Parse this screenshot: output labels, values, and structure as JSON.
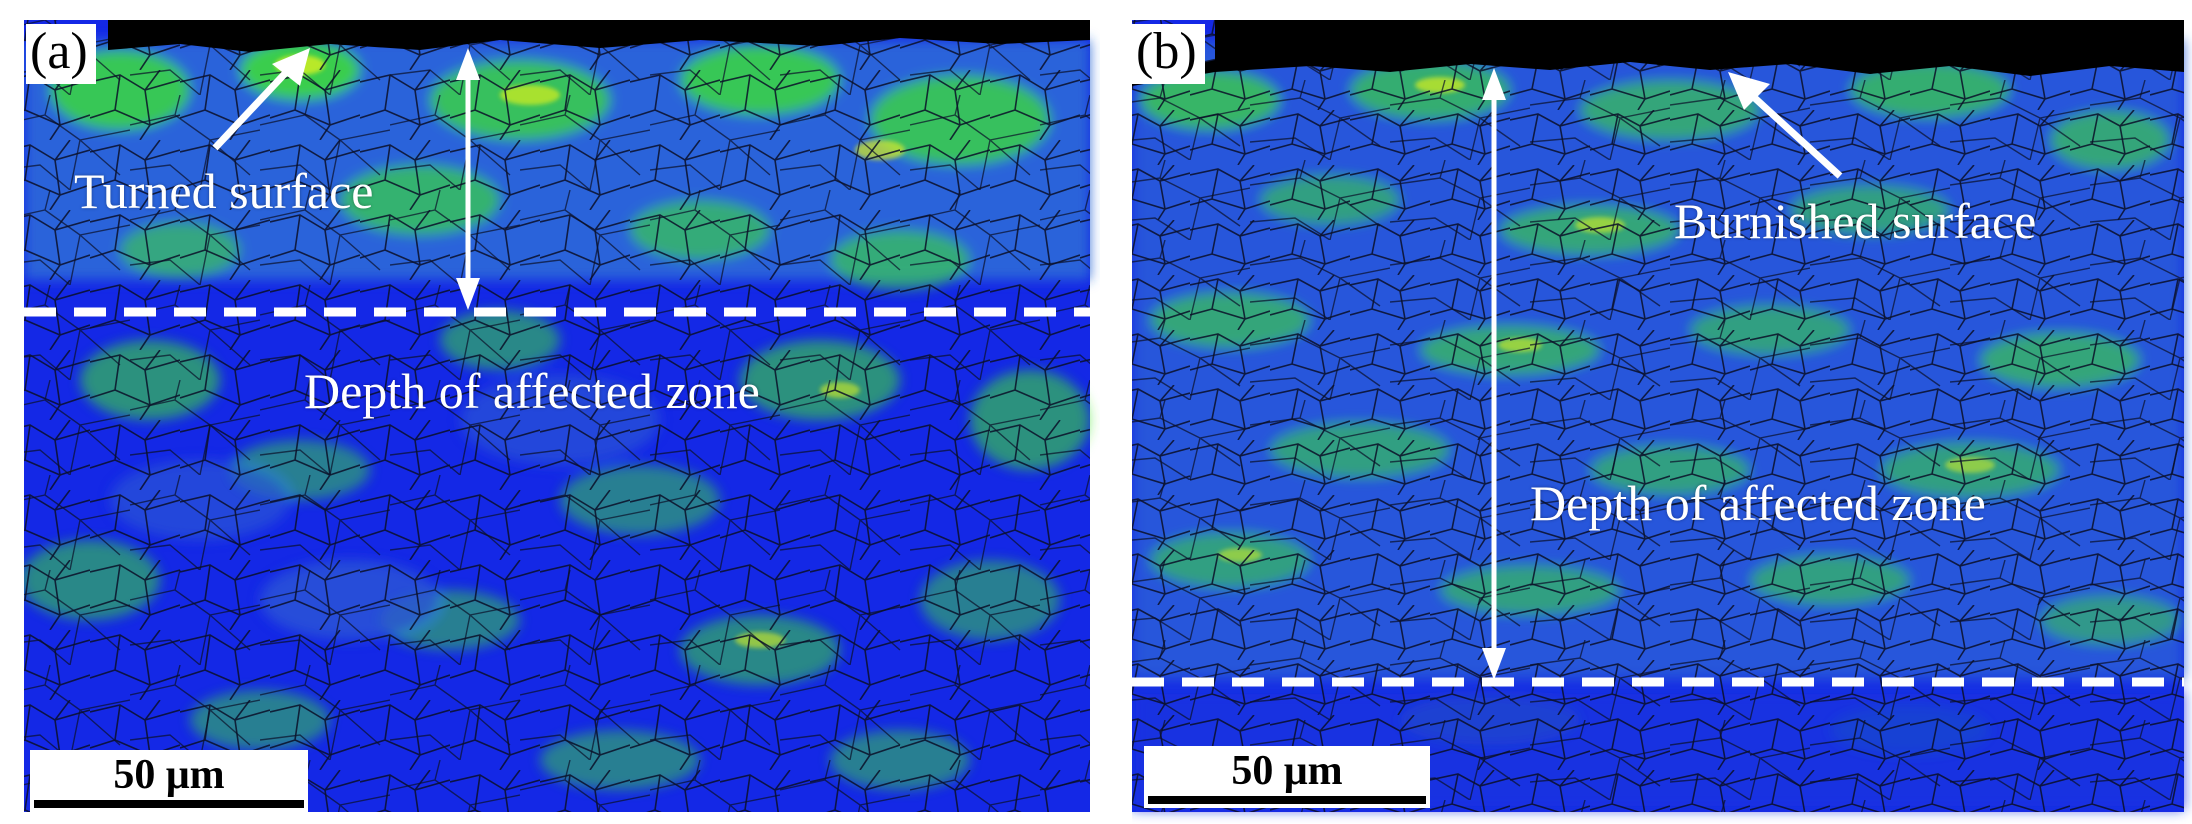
{
  "panels": [
    {
      "id": "a",
      "letter": "(a)",
      "surface_label": "Turned surface",
      "depth_label": "Depth of affected zone",
      "scale_label": "50 μm"
    },
    {
      "id": "b",
      "letter": "(b)",
      "surface_label": "Burnished surface",
      "depth_label": "Depth of affected zone",
      "scale_label": "50 μm"
    }
  ],
  "colors": {
    "matrix_blue": "#1428e6",
    "grain_blue": "#2a55d6",
    "strain_green": "#3ee82a",
    "strain_yellow": "#d8f020",
    "boundary": "#0a0f28",
    "edge_black": "#000000",
    "annotation_white": "#ffffff"
  }
}
